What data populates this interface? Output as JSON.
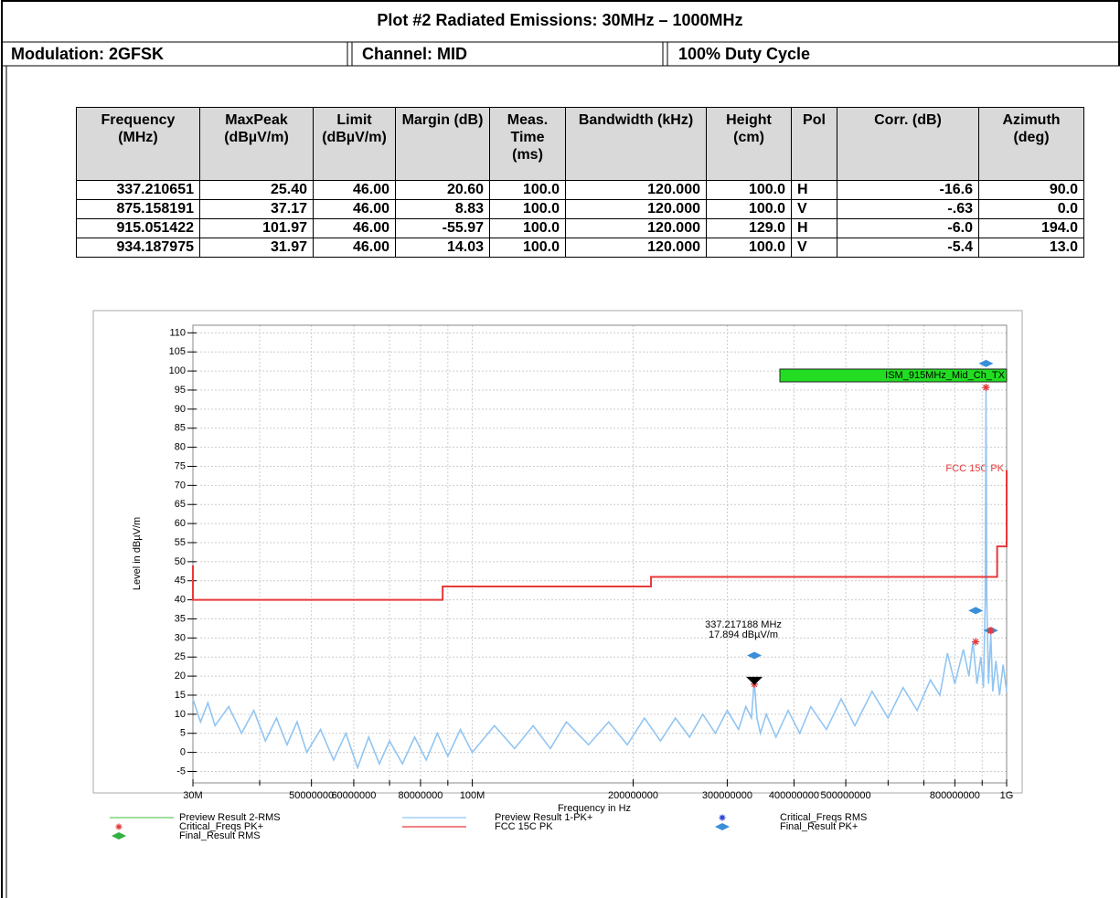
{
  "header": {
    "title": "Plot #2 Radiated Emissions: 30MHz – 1000MHz",
    "cells": [
      "Modulation: 2GFSK",
      "Channel: MID",
      "100% Duty Cycle"
    ]
  },
  "table": {
    "headers": [
      "Frequency (MHz)",
      "MaxPeak (dBµV/m)",
      "Limit (dBµV/m)",
      "Margin (dB)",
      "Meas. Time (ms)",
      "Bandwidth (kHz)",
      "Height (cm)",
      "Pol",
      "Corr. (dB)",
      "Azimuth (deg)"
    ],
    "rows": [
      [
        "337.210651",
        "25.40",
        "46.00",
        "20.60",
        "100.0",
        "120.000",
        "100.0",
        "H",
        "-16.6",
        "90.0"
      ],
      [
        "875.158191",
        "37.17",
        "46.00",
        "8.83",
        "100.0",
        "120.000",
        "100.0",
        "V",
        "-.63",
        "0.0"
      ],
      [
        "915.051422",
        "101.97",
        "46.00",
        "-55.97",
        "100.0",
        "120.000",
        "129.0",
        "H",
        "-6.0",
        "194.0"
      ],
      [
        "934.187975",
        "31.97",
        "46.00",
        "14.03",
        "100.0",
        "120.000",
        "100.0",
        "V",
        "-5.4",
        "13.0"
      ]
    ]
  },
  "chart_data": {
    "type": "line",
    "xlabel": "Frequency in Hz",
    "ylabel": "Level in dBµV/m",
    "log_x": true,
    "grid": true,
    "xlim": [
      30000000,
      1000000000
    ],
    "ylim": [
      -8,
      112
    ],
    "xticks": [
      {
        "value": 30000000,
        "label": "30M"
      },
      50000000,
      60000000,
      80000000,
      {
        "value": 100000000,
        "label": "100M"
      },
      200000000,
      300000000,
      400000000,
      500000000,
      800000000,
      {
        "value": 1000000000,
        "label": "1G"
      }
    ],
    "xminorticks": [
      40000000,
      70000000,
      90000000,
      600000000,
      700000000,
      900000000
    ],
    "yticks": [
      -5,
      0,
      5,
      10,
      15,
      20,
      25,
      30,
      35,
      40,
      45,
      50,
      55,
      60,
      65,
      70,
      75,
      80,
      85,
      90,
      95,
      100,
      105,
      110
    ],
    "series": [
      {
        "name": "Preview Result 2-RMS",
        "color": "#66cc66",
        "mark": "line",
        "x": [],
        "values": []
      },
      {
        "name": "Critical_Freqs PK+",
        "color": "#e8393a",
        "mark": "asterisk",
        "x": [
          337217188,
          875000000,
          915000000,
          934000000
        ],
        "values": [
          17.9,
          29,
          95.7,
          31.9
        ]
      },
      {
        "name": "Final_Result RMS",
        "color": "#33b040",
        "mark": "diamond",
        "x": [],
        "values": []
      },
      {
        "name": "Preview Result 1-PK+",
        "color": "#92c5f2",
        "mark": "line",
        "x": [
          30000000,
          31000000,
          32000000,
          33000000,
          35000000,
          37000000,
          39000000,
          41000000,
          43000000,
          45000000,
          47000000,
          49000000,
          52000000,
          55000000,
          58000000,
          61000000,
          64000000,
          67000000,
          70000000,
          74000000,
          78000000,
          82000000,
          86000000,
          90000000,
          95000000,
          100000000,
          110000000,
          120000000,
          130000000,
          140000000,
          150000000,
          165000000,
          180000000,
          195000000,
          210000000,
          225000000,
          240000000,
          255000000,
          270000000,
          285000000,
          300000000,
          315000000,
          325000000,
          333000000,
          337000000,
          341000000,
          346000000,
          355000000,
          370000000,
          390000000,
          410000000,
          430000000,
          460000000,
          490000000,
          520000000,
          560000000,
          600000000,
          640000000,
          680000000,
          720000000,
          750000000,
          775000000,
          800000000,
          830000000,
          850000000,
          865000000,
          880000000,
          895000000,
          905000000,
          912000000,
          915000000,
          918000000,
          925000000,
          934000000,
          942000000,
          955000000,
          970000000,
          985000000,
          1000000000
        ],
        "values": [
          14,
          8,
          13,
          7,
          12,
          5,
          11,
          3,
          9,
          2,
          8,
          0,
          6,
          -2,
          5,
          -4,
          4,
          -3,
          3,
          -3,
          4,
          -2,
          5,
          -1,
          6,
          0,
          7,
          1,
          7,
          1,
          8,
          2,
          8,
          2,
          9,
          3,
          9,
          4,
          10,
          5,
          11,
          6,
          12,
          9,
          19,
          9,
          5,
          10,
          4,
          11,
          5,
          12,
          6,
          14,
          7,
          16,
          9,
          17,
          11,
          19,
          15,
          26,
          18,
          27,
          20,
          29,
          18,
          25,
          17,
          40,
          96,
          40,
          18,
          31,
          16,
          24,
          15,
          23,
          16
        ]
      },
      {
        "name": "FCC 15C PK",
        "color": "#e8393a",
        "mark": "line",
        "x": [
          30000000,
          30000000,
          88000000,
          88000000,
          216000000,
          216000000,
          960000000,
          960000000,
          1000000000,
          1000000000
        ],
        "values": [
          49,
          40,
          40,
          43.5,
          43.5,
          46,
          46,
          54,
          54,
          74
        ]
      },
      {
        "name": "Critical_Freqs RMS",
        "color": "#2a3fd0",
        "mark": "asterisk",
        "x": [],
        "values": []
      },
      {
        "name": "Final_Result PK+",
        "color": "#3a8fd8",
        "mark": "diamond",
        "x": [
          337210651,
          875158191,
          915051422,
          934187975
        ],
        "values": [
          25.4,
          37.17,
          101.97,
          31.97
        ]
      }
    ],
    "marker": {
      "x": 337217188,
      "y": 17.894,
      "lines": [
        "337.217188 MHz",
        "17.894 dBµV/m"
      ]
    },
    "labels": {
      "test": "ISM_915MHz_Mid_Ch_TX",
      "limit": "FCC 15C PK"
    }
  }
}
